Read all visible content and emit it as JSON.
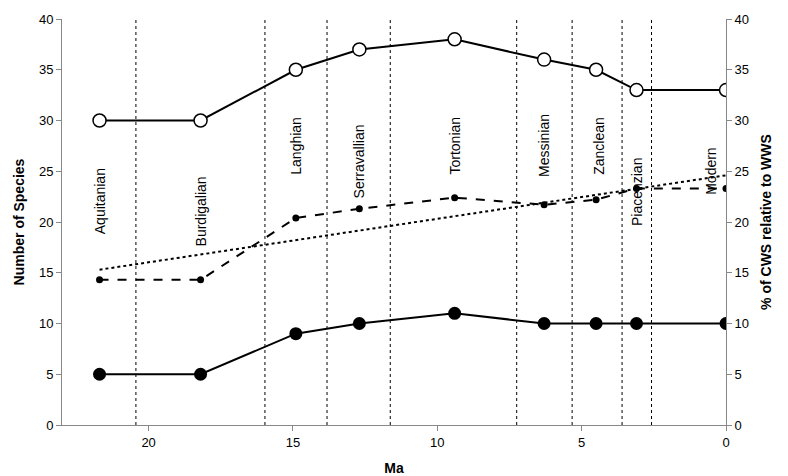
{
  "chart_data": {
    "type": "line",
    "x_label": "Ma",
    "y_label": "Number of Species",
    "y2_label": "% of CWS relative to WWS",
    "xlim": [
      23,
      0
    ],
    "xticks": [
      20,
      15,
      10,
      5,
      0
    ],
    "ylim": [
      0,
      40
    ],
    "yticks": [
      0,
      5,
      10,
      15,
      20,
      25,
      30,
      35,
      40
    ],
    "y2lim": [
      0,
      40
    ],
    "y2ticks": [
      0,
      5,
      10,
      15,
      20,
      25,
      30,
      35,
      40
    ],
    "grid": false,
    "series": [
      {
        "x": [
          21.7,
          18.2,
          14.9,
          12.7,
          9.4,
          6.3,
          4.5,
          3.1,
          0
        ],
        "values": [
          30,
          30,
          35,
          37,
          38,
          36,
          35,
          33,
          33
        ],
        "color": "#000000",
        "marker": "open circle",
        "line_style": "solid"
      },
      {
        "x": [
          21.7,
          18.2,
          14.9,
          12.7,
          9.4,
          6.3,
          4.5,
          3.1,
          0
        ],
        "values": [
          5,
          5,
          9,
          10,
          11,
          10,
          10,
          10,
          10
        ],
        "color": "#000000",
        "marker": "filled circle",
        "line_style": "solid"
      },
      {
        "x": [
          21.7,
          18.2,
          14.9,
          12.7,
          9.4,
          6.3,
          4.5,
          3.1,
          0
        ],
        "values": [
          14.3,
          14.3,
          20.4,
          21.3,
          22.4,
          21.7,
          22.2,
          23.3,
          23.3
        ],
        "color": "#000000",
        "marker": "small dot",
        "line_style": "dashed",
        "axis": "y2"
      },
      {
        "x": [
          21.7,
          0
        ],
        "values": [
          15.3,
          24.6
        ],
        "color": "#000000",
        "marker": "none",
        "line_style": "dotted",
        "axis": "y2"
      }
    ],
    "stage_boundaries": [
      20.44,
      15.97,
      13.82,
      11.63,
      7.25,
      5.33,
      3.6,
      2.58
    ],
    "annotations": [
      {
        "text": "Aquitanian",
        "x": 21.7,
        "y": 22
      },
      {
        "text": "Burdigalian",
        "x": 18.2,
        "y": 21
      },
      {
        "text": "Langhian",
        "x": 14.9,
        "y": 27.5
      },
      {
        "text": "Serravallian",
        "x": 12.7,
        "y": 26
      },
      {
        "text": "Tortonian",
        "x": 9.4,
        "y": 27.5
      },
      {
        "text": "Messinian",
        "x": 6.3,
        "y": 27.5
      },
      {
        "text": "Zanclean",
        "x": 4.4,
        "y": 27.5
      },
      {
        "text": "Piacenzian",
        "x": 3.1,
        "y": 23
      },
      {
        "text": "Modern",
        "x": 0.5,
        "y": 25
      }
    ]
  }
}
